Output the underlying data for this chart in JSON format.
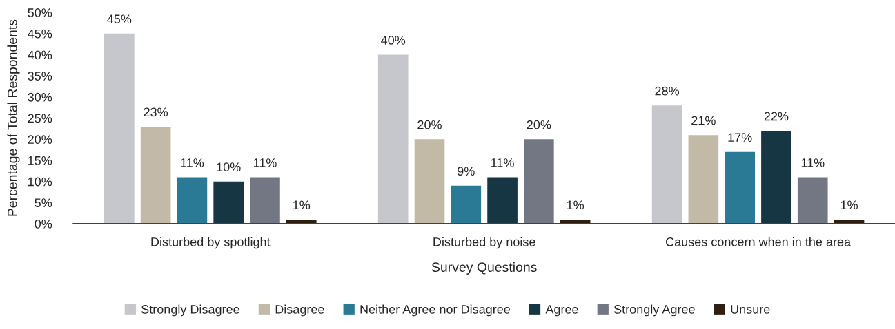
{
  "chart_data": {
    "type": "bar",
    "categories": [
      "Disturbed by spotlight",
      "Disturbed by noise",
      "Causes concern when in the area"
    ],
    "xlabel": "Survey Questions",
    "ylabel": "Percentage of Total Respondents",
    "ylim": [
      0,
      50
    ],
    "yticks": [
      {
        "value": 0,
        "label": "0%"
      },
      {
        "value": 5,
        "label": "5%"
      },
      {
        "value": 10,
        "label": "10%"
      },
      {
        "value": 15,
        "label": "15%"
      },
      {
        "value": 20,
        "label": "20%"
      },
      {
        "value": 25,
        "label": "25%"
      },
      {
        "value": 30,
        "label": "30%"
      },
      {
        "value": 35,
        "label": "35%"
      },
      {
        "value": 40,
        "label": "40%"
      },
      {
        "value": 45,
        "label": "45%"
      },
      {
        "value": 50,
        "label": "50%"
      }
    ],
    "series": [
      {
        "name": "Strongly Disagree",
        "color": "#c6c7cc",
        "values": [
          45,
          40,
          28
        ],
        "value_labels": [
          "45%",
          "40%",
          "28%"
        ]
      },
      {
        "name": "Disagree",
        "color": "#c2b9a7",
        "values": [
          23,
          20,
          21
        ],
        "value_labels": [
          "23%",
          "20%",
          "21%"
        ]
      },
      {
        "name": "Neither Agree nor Disagree",
        "color": "#2a7a96",
        "values": [
          11,
          9,
          17
        ],
        "value_labels": [
          "11%",
          "9%",
          "17%"
        ]
      },
      {
        "name": "Agree",
        "color": "#163643",
        "values": [
          10,
          11,
          22
        ],
        "value_labels": [
          "10%",
          "11%",
          "22%"
        ]
      },
      {
        "name": "Strongly Agree",
        "color": "#737784",
        "values": [
          11,
          20,
          11
        ],
        "value_labels": [
          "11%",
          "20%",
          "11%"
        ]
      },
      {
        "name": "Unsure",
        "color": "#2e1f10",
        "values": [
          1,
          1,
          1
        ],
        "value_labels": [
          "1%",
          "1%",
          "1%"
        ]
      }
    ],
    "grid": false,
    "legend": "bottom"
  }
}
